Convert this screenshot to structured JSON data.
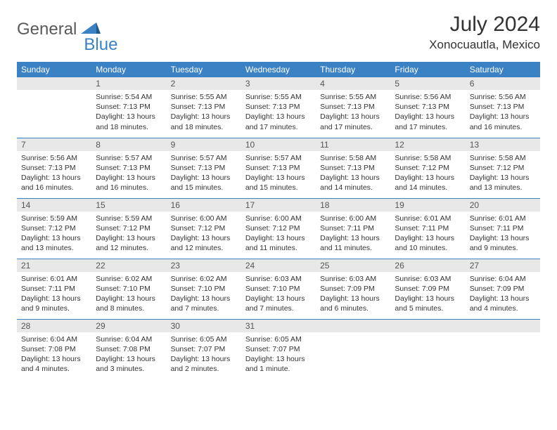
{
  "brand": {
    "first": "General",
    "second": "Blue"
  },
  "title": "July 2024",
  "location": "Xonocuautla, Mexico",
  "colors": {
    "header_bg": "#3b82c4",
    "header_fg": "#ffffff",
    "daynum_bg": "#e8e8e8",
    "border": "#3b82c4",
    "text": "#333333"
  },
  "dow": [
    "Sunday",
    "Monday",
    "Tuesday",
    "Wednesday",
    "Thursday",
    "Friday",
    "Saturday"
  ],
  "weeks": [
    [
      null,
      {
        "n": "1",
        "sr": "5:54 AM",
        "ss": "7:13 PM",
        "dl": "13 hours and 18 minutes."
      },
      {
        "n": "2",
        "sr": "5:55 AM",
        "ss": "7:13 PM",
        "dl": "13 hours and 18 minutes."
      },
      {
        "n": "3",
        "sr": "5:55 AM",
        "ss": "7:13 PM",
        "dl": "13 hours and 17 minutes."
      },
      {
        "n": "4",
        "sr": "5:55 AM",
        "ss": "7:13 PM",
        "dl": "13 hours and 17 minutes."
      },
      {
        "n": "5",
        "sr": "5:56 AM",
        "ss": "7:13 PM",
        "dl": "13 hours and 17 minutes."
      },
      {
        "n": "6",
        "sr": "5:56 AM",
        "ss": "7:13 PM",
        "dl": "13 hours and 16 minutes."
      }
    ],
    [
      {
        "n": "7",
        "sr": "5:56 AM",
        "ss": "7:13 PM",
        "dl": "13 hours and 16 minutes."
      },
      {
        "n": "8",
        "sr": "5:57 AM",
        "ss": "7:13 PM",
        "dl": "13 hours and 16 minutes."
      },
      {
        "n": "9",
        "sr": "5:57 AM",
        "ss": "7:13 PM",
        "dl": "13 hours and 15 minutes."
      },
      {
        "n": "10",
        "sr": "5:57 AM",
        "ss": "7:13 PM",
        "dl": "13 hours and 15 minutes."
      },
      {
        "n": "11",
        "sr": "5:58 AM",
        "ss": "7:13 PM",
        "dl": "13 hours and 14 minutes."
      },
      {
        "n": "12",
        "sr": "5:58 AM",
        "ss": "7:12 PM",
        "dl": "13 hours and 14 minutes."
      },
      {
        "n": "13",
        "sr": "5:58 AM",
        "ss": "7:12 PM",
        "dl": "13 hours and 13 minutes."
      }
    ],
    [
      {
        "n": "14",
        "sr": "5:59 AM",
        "ss": "7:12 PM",
        "dl": "13 hours and 13 minutes."
      },
      {
        "n": "15",
        "sr": "5:59 AM",
        "ss": "7:12 PM",
        "dl": "13 hours and 12 minutes."
      },
      {
        "n": "16",
        "sr": "6:00 AM",
        "ss": "7:12 PM",
        "dl": "13 hours and 12 minutes."
      },
      {
        "n": "17",
        "sr": "6:00 AM",
        "ss": "7:12 PM",
        "dl": "13 hours and 11 minutes."
      },
      {
        "n": "18",
        "sr": "6:00 AM",
        "ss": "7:11 PM",
        "dl": "13 hours and 11 minutes."
      },
      {
        "n": "19",
        "sr": "6:01 AM",
        "ss": "7:11 PM",
        "dl": "13 hours and 10 minutes."
      },
      {
        "n": "20",
        "sr": "6:01 AM",
        "ss": "7:11 PM",
        "dl": "13 hours and 9 minutes."
      }
    ],
    [
      {
        "n": "21",
        "sr": "6:01 AM",
        "ss": "7:11 PM",
        "dl": "13 hours and 9 minutes."
      },
      {
        "n": "22",
        "sr": "6:02 AM",
        "ss": "7:10 PM",
        "dl": "13 hours and 8 minutes."
      },
      {
        "n": "23",
        "sr": "6:02 AM",
        "ss": "7:10 PM",
        "dl": "13 hours and 7 minutes."
      },
      {
        "n": "24",
        "sr": "6:03 AM",
        "ss": "7:10 PM",
        "dl": "13 hours and 7 minutes."
      },
      {
        "n": "25",
        "sr": "6:03 AM",
        "ss": "7:09 PM",
        "dl": "13 hours and 6 minutes."
      },
      {
        "n": "26",
        "sr": "6:03 AM",
        "ss": "7:09 PM",
        "dl": "13 hours and 5 minutes."
      },
      {
        "n": "27",
        "sr": "6:04 AM",
        "ss": "7:09 PM",
        "dl": "13 hours and 4 minutes."
      }
    ],
    [
      {
        "n": "28",
        "sr": "6:04 AM",
        "ss": "7:08 PM",
        "dl": "13 hours and 4 minutes."
      },
      {
        "n": "29",
        "sr": "6:04 AM",
        "ss": "7:08 PM",
        "dl": "13 hours and 3 minutes."
      },
      {
        "n": "30",
        "sr": "6:05 AM",
        "ss": "7:07 PM",
        "dl": "13 hours and 2 minutes."
      },
      {
        "n": "31",
        "sr": "6:05 AM",
        "ss": "7:07 PM",
        "dl": "13 hours and 1 minute."
      },
      null,
      null,
      null
    ]
  ],
  "labels": {
    "sunrise": "Sunrise:",
    "sunset": "Sunset:",
    "daylight": "Daylight:"
  }
}
